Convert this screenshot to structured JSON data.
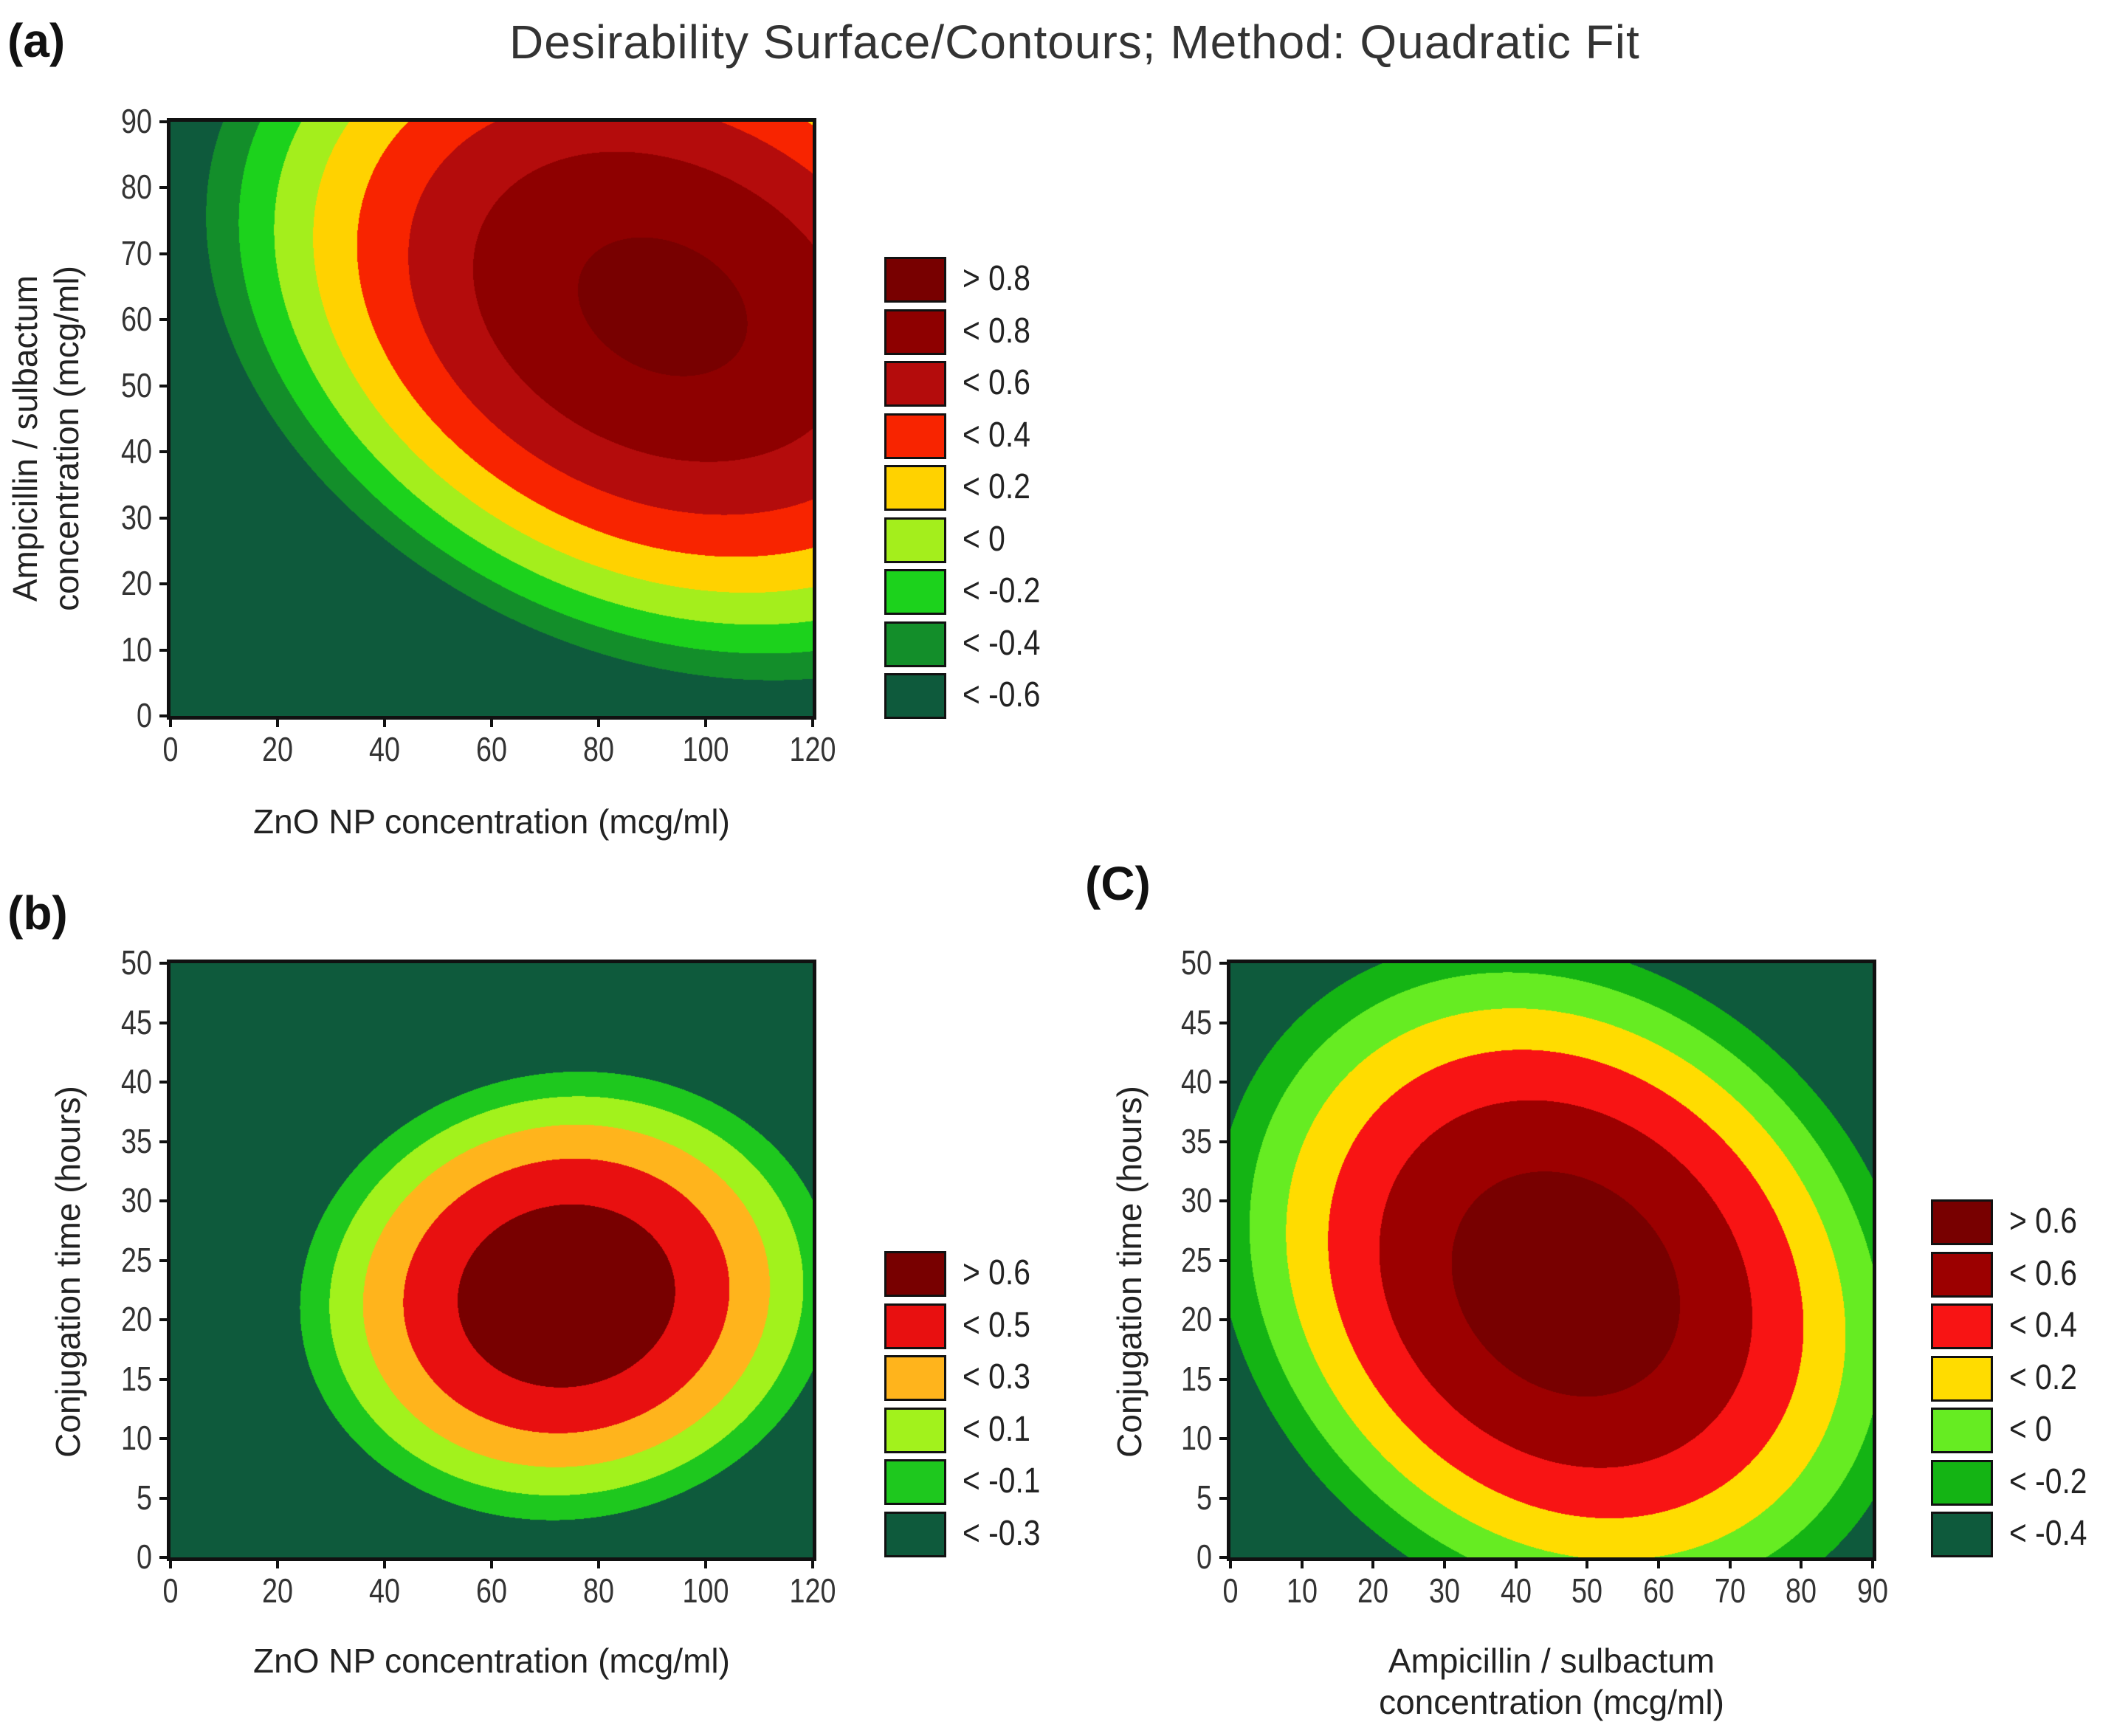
{
  "title": "Desirability Surface/Contours; Method: Quadratic Fit",
  "chart_data": [
    {
      "type": "heatmap",
      "panel_label": "(a)",
      "xlabel": "ZnO NP concentration (mcg/ml)",
      "ylabel_lines": [
        "Ampicillin / sulbactum",
        "concentration (mcg/ml)"
      ],
      "xlim": [
        0,
        120
      ],
      "ylim": [
        0,
        90
      ],
      "xticks": [
        "0",
        "20",
        "40",
        "60",
        "80",
        "100",
        "120"
      ],
      "yticks": [
        "0",
        "10",
        "20",
        "30",
        "40",
        "50",
        "60",
        "70",
        "80",
        "90"
      ],
      "optimum": {
        "x": 92,
        "y": 62,
        "value": 0.85
      },
      "legend": [
        {
          "label": "> 0.8",
          "color": "#780000"
        },
        {
          "label": "< 0.8",
          "color": "#8e0000"
        },
        {
          "label": "< 0.6",
          "color": "#b40c0c"
        },
        {
          "label": "< 0.4",
          "color": "#f82400"
        },
        {
          "label": "< 0.2",
          "color": "#ffd200"
        },
        {
          "label": "< 0",
          "color": "#a4ee1c"
        },
        {
          "label": "< -0.2",
          "color": "#1cd21c"
        },
        {
          "label": "< -0.4",
          "color": "#138e2a"
        },
        {
          "label": "< -0.6",
          "color": "#0e5a3c"
        }
      ],
      "levels": [
        0.8,
        0.6,
        0.4,
        0.2,
        0,
        -0.2,
        -0.4,
        -0.6
      ]
    },
    {
      "type": "heatmap",
      "panel_label": "(b)",
      "xlabel": "ZnO NP concentration (mcg/ml)",
      "ylabel_lines": [
        "Conjugation time (hours)"
      ],
      "xlim": [
        0,
        120
      ],
      "ylim": [
        0,
        50
      ],
      "xticks": [
        "0",
        "20",
        "40",
        "60",
        "80",
        "100",
        "120"
      ],
      "yticks": [
        "0",
        "5",
        "10",
        "15",
        "20",
        "25",
        "30",
        "35",
        "40",
        "45",
        "50"
      ],
      "optimum": {
        "x": 74,
        "y": 22,
        "value": 0.68
      },
      "legend": [
        {
          "label": "> 0.6",
          "color": "#780000"
        },
        {
          "label": "< 0.5",
          "color": "#e81010"
        },
        {
          "label": "< 0.3",
          "color": "#ffb41c"
        },
        {
          "label": "< 0.1",
          "color": "#a2f21c"
        },
        {
          "label": "< -0.1",
          "color": "#1ec81e"
        },
        {
          "label": "< -0.3",
          "color": "#0e5a3c"
        }
      ],
      "levels": [
        0.6,
        0.5,
        0.4,
        0.3,
        0.2,
        0.1,
        0,
        -0.1,
        -0.2,
        -0.3
      ]
    },
    {
      "type": "heatmap",
      "panel_label": "(C)",
      "xlabel_lines": [
        "Ampicillin / sulbactum",
        "concentration (mcg/ml)"
      ],
      "ylabel_lines": [
        "Conjugation time (hours)"
      ],
      "xlim": [
        0,
        90
      ],
      "ylim": [
        0,
        50
      ],
      "xticks": [
        "0",
        "10",
        "20",
        "30",
        "40",
        "50",
        "60",
        "70",
        "80",
        "90"
      ],
      "yticks": [
        "0",
        "5",
        "10",
        "15",
        "20",
        "25",
        "30",
        "35",
        "40",
        "45",
        "50"
      ],
      "optimum": {
        "x": 47,
        "y": 23,
        "value": 0.72
      },
      "legend": [
        {
          "label": "> 0.6",
          "color": "#780000"
        },
        {
          "label": "< 0.6",
          "color": "#9c0000"
        },
        {
          "label": "< 0.4",
          "color": "#f81414"
        },
        {
          "label": "< 0.2",
          "color": "#ffdc00"
        },
        {
          "label": "< 0",
          "color": "#66ec22"
        },
        {
          "label": "< -0.2",
          "color": "#14b414"
        },
        {
          "label": "< -0.4",
          "color": "#0e5a3c"
        }
      ],
      "levels": [
        0.6,
        0.4,
        0.2,
        0,
        -0.2,
        -0.4
      ]
    }
  ]
}
